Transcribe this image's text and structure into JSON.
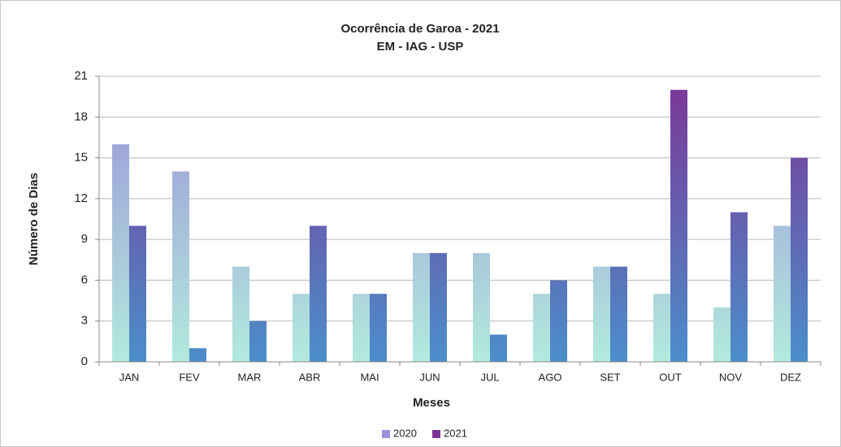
{
  "chart_data": {
    "type": "bar",
    "title": "Ocorrência de Garoa - 2021",
    "subtitle": "EM - IAG - USP",
    "x_label": "Meses",
    "y_label": "Número de Dias",
    "categories": [
      "JAN",
      "FEV",
      "MAR",
      "ABR",
      "MAI",
      "JUN",
      "JUL",
      "AGO",
      "SET",
      "OUT",
      "NOV",
      "DEZ"
    ],
    "series": [
      {
        "name": "2020",
        "color": "#9a92d8",
        "values": [
          16,
          14,
          7,
          5,
          5,
          8,
          8,
          5,
          7,
          5,
          4,
          10
        ]
      },
      {
        "name": "2021",
        "color": "#7d3497",
        "values": [
          10,
          1,
          3,
          10,
          5,
          8,
          2,
          6,
          7,
          20,
          11,
          15
        ]
      }
    ],
    "ylim": [
      0,
      21
    ],
    "yticks": [
      0,
      3,
      6,
      9,
      12,
      15,
      18,
      21
    ],
    "grid": true,
    "legend": "bottom"
  }
}
